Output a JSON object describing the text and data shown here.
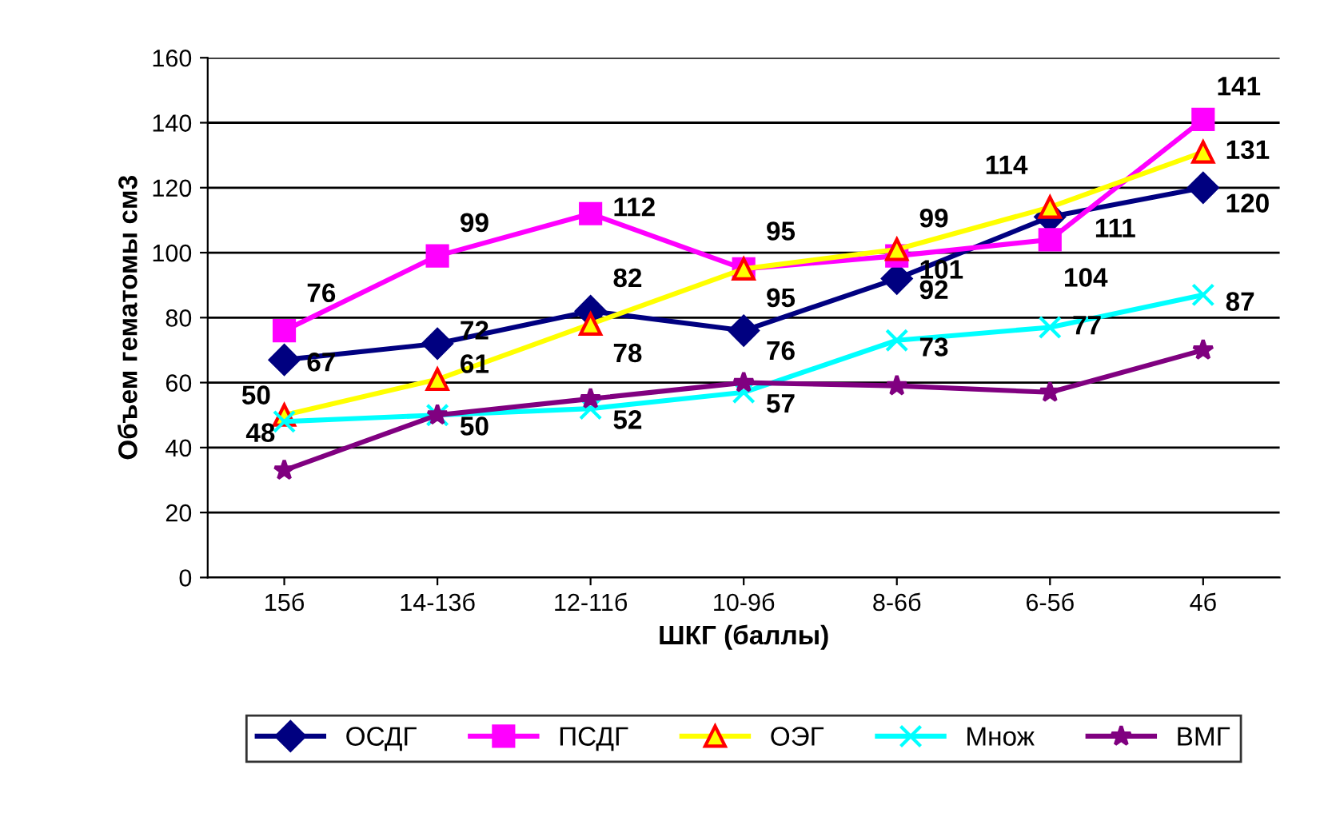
{
  "chart_data": {
    "type": "line",
    "xlabel": "ШКГ (баллы)",
    "ylabel": "Объем гематомы см3",
    "categories": [
      "15б",
      "14-13б",
      "12-11б",
      "10-9б",
      "8-6б",
      "6-5б",
      "4б"
    ],
    "ylim": [
      0,
      160
    ],
    "yticks": [
      0,
      20,
      40,
      60,
      80,
      100,
      120,
      140,
      160
    ],
    "grid": "y",
    "legend": "bottom",
    "line_style": "solid",
    "series": [
      {
        "name": "ОСДГ",
        "color": "#000080",
        "marker": "diamond",
        "values": [
          67,
          72,
          82,
          76,
          92,
          111,
          120
        ],
        "value_labels": [
          "67",
          "72",
          "82",
          "76",
          "92",
          "111",
          "120"
        ]
      },
      {
        "name": "ПСДГ",
        "color": "#ff00ff",
        "marker": "square",
        "values": [
          76,
          99,
          112,
          95,
          99,
          104,
          141
        ],
        "value_labels": [
          "76",
          "99",
          "112",
          "95",
          "99",
          "104",
          "141"
        ]
      },
      {
        "name": "ОЭГ",
        "color": "#ffff00",
        "marker": "triangle",
        "values": [
          50,
          61,
          78,
          95,
          101,
          114,
          131
        ],
        "value_labels": [
          "50",
          "61",
          "78",
          "95",
          "101",
          "114",
          "131"
        ]
      },
      {
        "name": "Множ",
        "color": "#00ffff",
        "marker": "cross",
        "values": [
          48,
          50,
          52,
          57,
          73,
          77,
          87
        ],
        "value_labels": [
          "48",
          "50",
          "52",
          "57",
          "73",
          "77",
          "87"
        ]
      },
      {
        "name": "ВМГ",
        "color": "#800080",
        "marker": "star",
        "values": [
          33,
          50,
          55,
          60,
          59,
          57,
          70
        ],
        "value_labels": [
          null,
          null,
          null,
          null,
          null,
          null,
          null
        ]
      }
    ]
  }
}
